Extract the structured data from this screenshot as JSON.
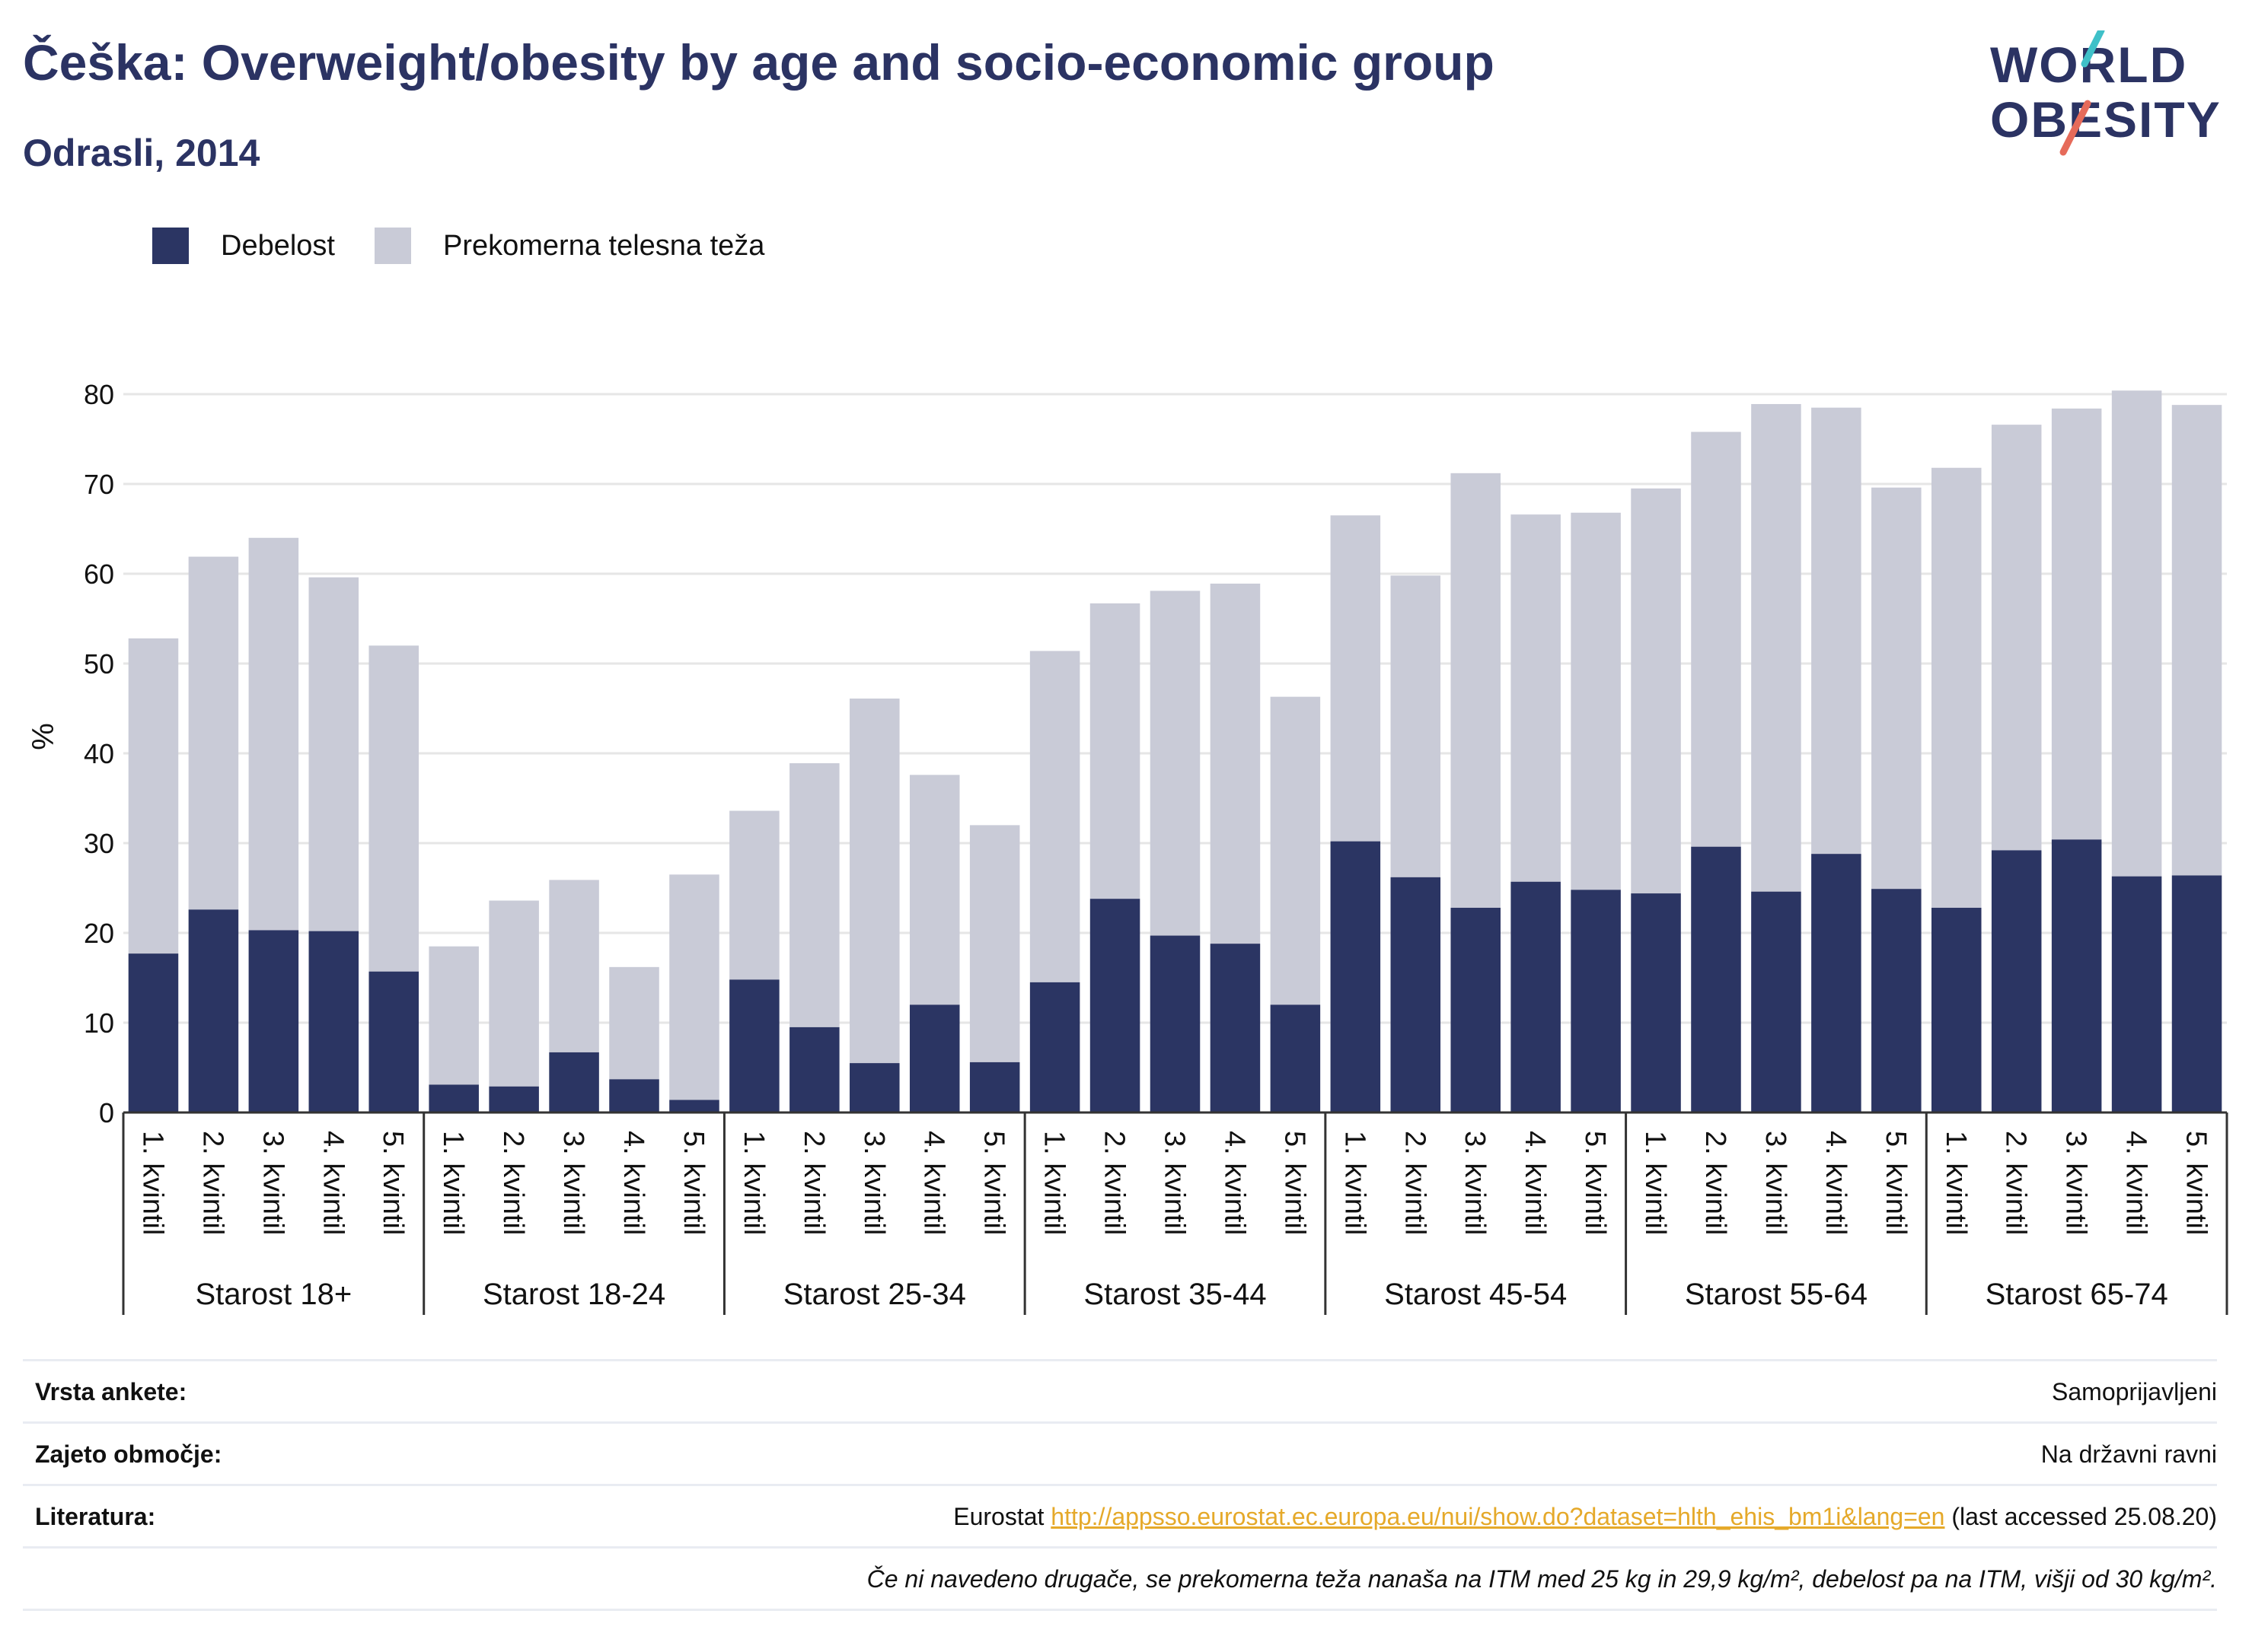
{
  "header": {
    "title": "Češka: Overweight/obesity by age and socio-economic group",
    "subtitle": "Odrasli, 2014"
  },
  "logo": {
    "line1": "WORLD",
    "line2": "OBESITY"
  },
  "colors": {
    "obesity": "#2b3563",
    "overweight": "#c9cbd7",
    "title": "#2b3363",
    "link": "#e5a92a",
    "logo_teal": "#3fc0c8",
    "logo_coral": "#e66b5a"
  },
  "chart_data": {
    "type": "bar",
    "stacked": true,
    "ylabel": "%",
    "ylim": [
      0,
      80
    ],
    "yticks": [
      0,
      10,
      20,
      30,
      40,
      50,
      60,
      70,
      80
    ],
    "grid": true,
    "legend_position": "top-left",
    "groups": [
      "Starost 18+",
      "Starost 18-24",
      "Starost 25-34",
      "Starost 35-44",
      "Starost 45-54",
      "Starost 55-64",
      "Starost 65-74"
    ],
    "categories": [
      "1. kvintil",
      "2. kvintil",
      "3. kvintil",
      "4. kvintil",
      "5. kvintil"
    ],
    "series": [
      {
        "name": "Debelost",
        "values": [
          [
            17.7,
            22.6,
            20.3,
            20.2,
            15.7
          ],
          [
            3.1,
            2.9,
            6.7,
            3.7,
            1.4
          ],
          [
            14.8,
            9.5,
            5.5,
            12.0,
            5.6
          ],
          [
            14.5,
            23.8,
            19.7,
            18.8,
            12.0
          ],
          [
            30.2,
            26.2,
            22.8,
            25.7,
            24.8
          ],
          [
            24.4,
            29.6,
            24.6,
            28.8,
            24.9
          ],
          [
            22.8,
            29.2,
            30.4,
            26.3,
            26.4
          ]
        ]
      },
      {
        "name": "Prekomerna telesna teža",
        "values": [
          [
            35.1,
            39.3,
            43.7,
            39.4,
            36.3
          ],
          [
            15.4,
            20.7,
            19.2,
            12.5,
            25.1
          ],
          [
            18.8,
            29.4,
            40.6,
            25.6,
            26.4
          ],
          [
            36.9,
            32.9,
            38.4,
            40.1,
            34.3
          ],
          [
            36.3,
            33.6,
            48.4,
            40.9,
            42.0
          ],
          [
            45.1,
            46.2,
            54.3,
            49.7,
            44.7
          ],
          [
            49.0,
            47.4,
            48.0,
            54.1,
            52.4
          ]
        ]
      }
    ]
  },
  "meta": {
    "survey_label": "Vrsta ankete:",
    "survey_value": "Samoprijavljeni",
    "coverage_label": "Zajeto območje:",
    "coverage_value": "Na državni ravni",
    "lit_label": "Literatura:",
    "lit_prefix": "Eurostat ",
    "lit_link": "http://appsso.eurostat.ec.europa.eu/nui/show.do?dataset=hlth_ehis_bm1i&lang=en",
    "lit_suffix": " (last accessed 25.08.20)",
    "note": "Če ni navedeno drugače, se prekomerna teža nanaša na ITM med 25 kg in 29,9 kg/m², debelost pa na ITM, višji od 30 kg/m²."
  }
}
